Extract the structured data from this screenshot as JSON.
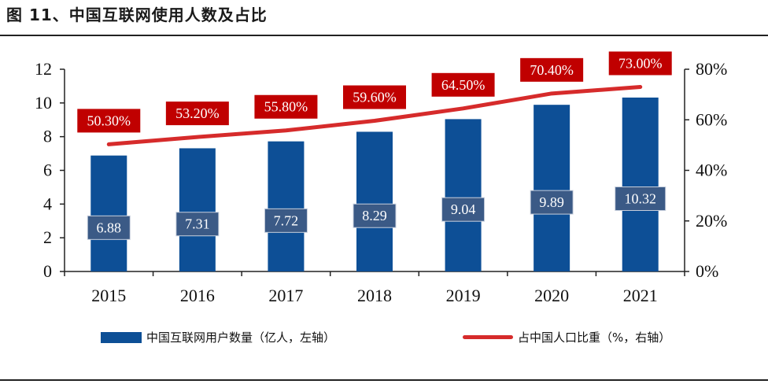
{
  "title": "图 11、中国互联网使用人数及占比",
  "colors": {
    "bar": "#0d4f96",
    "line": "#d62b2b",
    "bar_label_bg": "#3b5a86",
    "line_label_bg": "#c00000"
  },
  "legend": {
    "bar_label": "中国互联网用户数量（亿人，左轴）",
    "line_label": "占中国人口比重（%，右轴）"
  },
  "chart_data": {
    "type": "bar",
    "categories": [
      "2015",
      "2016",
      "2017",
      "2018",
      "2019",
      "2020",
      "2021"
    ],
    "series": [
      {
        "name": "中国互联网用户数量（亿人，左轴）",
        "type": "bar",
        "axis": "left",
        "values": [
          6.88,
          7.31,
          7.72,
          8.29,
          9.04,
          9.89,
          10.32
        ],
        "labels": [
          "6.88",
          "7.31",
          "7.72",
          "8.29",
          "9.04",
          "9.89",
          "10.32"
        ]
      },
      {
        "name": "占中国人口比重（%，右轴）",
        "type": "line",
        "axis": "right",
        "values": [
          50.3,
          53.2,
          55.8,
          59.6,
          64.5,
          70.4,
          73.0
        ],
        "labels": [
          "50.30%",
          "53.20%",
          "55.80%",
          "59.60%",
          "64.50%",
          "70.40%",
          "73.00%"
        ]
      }
    ],
    "y_left": {
      "lim": [
        0,
        12
      ],
      "ticks": [
        "0",
        "2",
        "4",
        "6",
        "8",
        "10",
        "12"
      ]
    },
    "y_right": {
      "lim": [
        0,
        80
      ],
      "ticks": [
        "0%",
        "20%",
        "40%",
        "60%",
        "80%"
      ]
    },
    "grid": false,
    "legend_position": "bottom"
  }
}
